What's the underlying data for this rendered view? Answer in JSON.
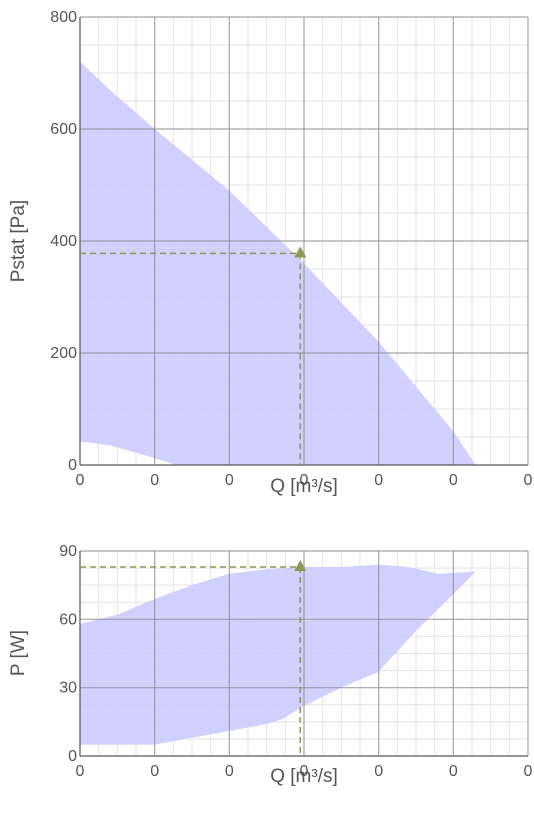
{
  "colors": {
    "band_fill": "#c9c9ff",
    "grid_major": "#8e8e8e",
    "grid_minor": "#e3e3e3",
    "marker": "#8a9a50",
    "text": "#555555"
  },
  "chart_data": [
    {
      "type": "area",
      "xlabel": "Q [m³/s]",
      "ylabel": "Pstat [Pa]",
      "xlim": [
        0,
        6
      ],
      "ylim": [
        0,
        800
      ],
      "x_tick_labels": [
        "0",
        "0",
        "0",
        "0",
        "0",
        "0",
        "0"
      ],
      "y_ticks": [
        0,
        200,
        400,
        600,
        800
      ],
      "y_tick_labels": [
        "0",
        "200",
        "400",
        "600",
        "800"
      ],
      "grid": true,
      "operating_point": {
        "x": 2.95,
        "y": 378
      },
      "band_upper": [
        [
          0,
          720
        ],
        [
          0.4,
          670
        ],
        [
          1.0,
          600
        ],
        [
          1.5,
          545
        ],
        [
          2.0,
          490
        ],
        [
          2.5,
          425
        ],
        [
          3.0,
          360
        ],
        [
          3.5,
          290
        ],
        [
          4.0,
          220
        ],
        [
          4.5,
          140
        ],
        [
          5.0,
          60
        ],
        [
          5.3,
          0
        ]
      ],
      "band_lower": [
        [
          0,
          42
        ],
        [
          0.4,
          35
        ],
        [
          0.8,
          20
        ],
        [
          1.3,
          0
        ]
      ]
    },
    {
      "type": "area",
      "xlabel": "Q [m³/s]",
      "ylabel": "P [W]",
      "xlim": [
        0,
        6
      ],
      "ylim": [
        0,
        90
      ],
      "x_tick_labels": [
        "0",
        "0",
        "0",
        "0",
        "0",
        "0",
        "0"
      ],
      "y_ticks": [
        0,
        30,
        60,
        90
      ],
      "y_tick_labels": [
        "0",
        "30",
        "60",
        "90"
      ],
      "grid": true,
      "operating_point": {
        "x": 2.95,
        "y": 83
      },
      "band_upper": [
        [
          0,
          58
        ],
        [
          0.5,
          62
        ],
        [
          1.0,
          69
        ],
        [
          1.5,
          75
        ],
        [
          2.0,
          80
        ],
        [
          2.5,
          82
        ],
        [
          3.0,
          83
        ],
        [
          3.5,
          83
        ],
        [
          4.0,
          84
        ],
        [
          4.4,
          83
        ],
        [
          4.8,
          80
        ],
        [
          5.3,
          81
        ]
      ],
      "band_lower": [
        [
          0,
          5
        ],
        [
          1.0,
          5
        ],
        [
          1.5,
          8
        ],
        [
          2.0,
          11
        ],
        [
          2.5,
          14
        ],
        [
          2.7,
          16
        ],
        [
          3.0,
          22
        ],
        [
          3.5,
          30
        ],
        [
          4.0,
          37
        ],
        [
          4.5,
          55
        ],
        [
          5.0,
          71
        ],
        [
          5.3,
          81
        ]
      ]
    }
  ]
}
